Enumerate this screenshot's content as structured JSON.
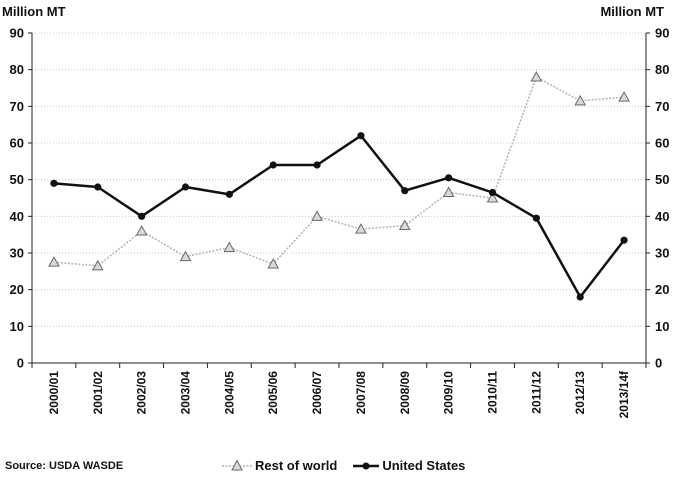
{
  "unit_left": "Million MT",
  "unit_right": "Million MT",
  "source": "Source: USDA WASDE",
  "colors": {
    "us": "#111111",
    "row": "#b3b3b3",
    "row_marker_fill": "#d9d9d9",
    "grid": "#c8c8c8"
  },
  "chart_data": {
    "type": "line",
    "categories": [
      "2000/01",
      "2001/02",
      "2002/03",
      "2003/04",
      "2004/05",
      "2005/06",
      "2006/07",
      "2007/08",
      "2008/09",
      "2009/10",
      "2010/11",
      "2011/12",
      "2012/13",
      "2013/14f"
    ],
    "series": [
      {
        "name": "Rest of world",
        "marker": "triangle",
        "values": [
          27.5,
          26.5,
          36.0,
          29.0,
          31.5,
          27.0,
          40.0,
          36.5,
          37.5,
          46.5,
          45.0,
          78.0,
          71.5,
          72.5
        ]
      },
      {
        "name": "United States",
        "marker": "circle",
        "values": [
          49.0,
          48.0,
          40.0,
          48.0,
          46.0,
          54.0,
          54.0,
          62.0,
          47.0,
          50.5,
          46.5,
          39.5,
          18.0,
          33.5
        ]
      }
    ],
    "yticks": [
      0,
      10,
      20,
      30,
      40,
      50,
      60,
      70,
      80,
      90
    ],
    "ylim": [
      0,
      90
    ],
    "secondary_yaxis": true,
    "grid": true,
    "legend_position": "bottom"
  }
}
